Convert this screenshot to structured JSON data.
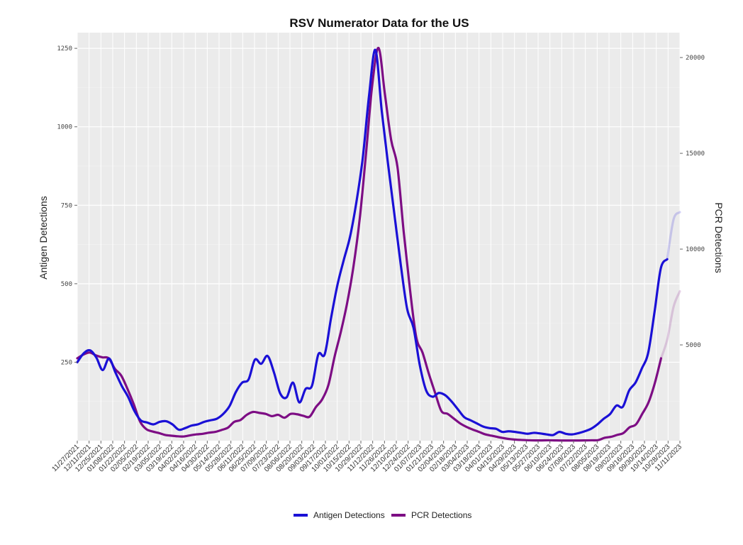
{
  "chart_data": {
    "type": "line",
    "title": "RSV Numerator Data for the US",
    "ylabel": "Antigen Detections",
    "y2label": "PCR Detections",
    "ylim": [
      0,
      1300
    ],
    "y2lim": [
      0,
      21300
    ],
    "yticks": [
      250,
      500,
      750,
      1000,
      1250
    ],
    "y2ticks": [
      5000,
      10000,
      15000,
      20000
    ],
    "grid": true,
    "legend_position": "bottom",
    "x_tick_labels": [
      "11/27/2021",
      "12/11/2021",
      "12/25/2021",
      "01/08/2022",
      "01/22/2022",
      "02/05/2022",
      "02/19/2022",
      "03/05/2022",
      "03/19/2022",
      "04/02/2022",
      "04/16/2022",
      "04/30/2022",
      "05/14/2022",
      "05/28/2022",
      "06/11/2022",
      "06/25/2022",
      "07/09/2022",
      "07/23/2022",
      "08/06/2022",
      "08/20/2022",
      "09/03/2022",
      "09/17/2022",
      "10/01/2022",
      "10/15/2022",
      "10/29/2022",
      "11/12/2022",
      "11/26/2022",
      "12/10/2022",
      "12/24/2022",
      "01/07/2023",
      "01/21/2023",
      "02/04/2023",
      "02/18/2023",
      "03/04/2023",
      "03/18/2023",
      "04/01/2023",
      "04/15/2023",
      "04/29/2023",
      "05/13/2023",
      "05/27/2023",
      "06/10/2023",
      "06/24/2023",
      "07/08/2023",
      "07/22/2023",
      "08/05/2023",
      "08/19/2023",
      "09/02/2023",
      "09/16/2023",
      "09/30/2023",
      "10/14/2023",
      "10/28/2023",
      "11/11/2023"
    ],
    "series": [
      {
        "name": "Antigen Detections",
        "axis": "left",
        "color": "#1a10d6",
        "faded_last_points": 2,
        "values": [
          250,
          278,
          288,
          265,
          225,
          262,
          218,
          175,
          140,
          95,
          65,
          58,
          52,
          60,
          62,
          52,
          35,
          40,
          48,
          52,
          60,
          65,
          70,
          85,
          110,
          155,
          185,
          195,
          258,
          245,
          270,
          218,
          150,
          138,
          185,
          122,
          165,
          175,
          275,
          275,
          390,
          495,
          575,
          650,
          760,
          900,
          1100,
          1245,
          1050,
          880,
          720,
          560,
          420,
          360,
          240,
          160,
          140,
          152,
          145,
          125,
          100,
          75,
          65,
          55,
          45,
          40,
          38,
          28,
          30,
          28,
          25,
          22,
          25,
          23,
          20,
          18,
          28,
          22,
          20,
          24,
          30,
          38,
          52,
          70,
          85,
          112,
          108,
          160,
          185,
          230,
          280,
          410,
          550,
          578,
          705,
          728
        ]
      },
      {
        "name": "PCR Detections",
        "axis": "right",
        "color": "#7d0d84",
        "faded_last_points": 3,
        "values": [
          4300,
          4500,
          4600,
          4450,
          4350,
          4300,
          3750,
          3400,
          2700,
          1900,
          1000,
          600,
          480,
          400,
          300,
          260,
          230,
          220,
          280,
          330,
          360,
          420,
          460,
          560,
          680,
          980,
          1080,
          1350,
          1500,
          1450,
          1400,
          1280,
          1350,
          1200,
          1400,
          1380,
          1300,
          1250,
          1750,
          2150,
          2900,
          4400,
          5700,
          7200,
          9100,
          11600,
          15000,
          18600,
          20500,
          18100,
          15700,
          14300,
          10900,
          7900,
          5400,
          4600,
          3500,
          2500,
          1550,
          1400,
          1150,
          900,
          720,
          580,
          460,
          330,
          260,
          190,
          130,
          80,
          50,
          35,
          20,
          15,
          15,
          20,
          15,
          10,
          10,
          10,
          10,
          15,
          20,
          30,
          150,
          200,
          300,
          400,
          700,
          850,
          1400,
          2000,
          3000,
          4300,
          5300,
          7000,
          7800
        ]
      }
    ]
  }
}
